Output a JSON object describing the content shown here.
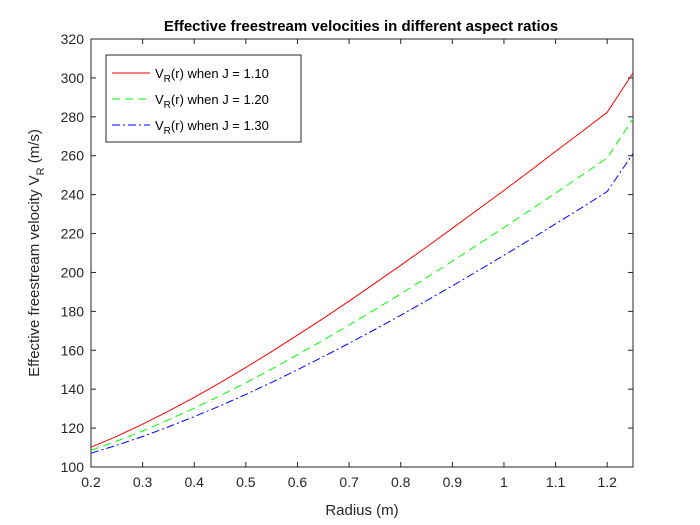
{
  "chart_data": {
    "type": "line",
    "title": "Effective freestream velocities in different aspect ratios",
    "xlabel": "Radius (m)",
    "ylabel_main": "Effective freestream velocity V",
    "ylabel_sub": "R",
    "ylabel_unit": " (m/s)",
    "xlim": [
      0.2,
      1.25
    ],
    "ylim": [
      100,
      320
    ],
    "xticks": [
      0.2,
      0.3,
      0.4,
      0.5,
      0.6,
      0.7,
      0.8,
      0.9,
      1,
      1.1,
      1.2
    ],
    "xtick_labels": [
      "0.2",
      "0.3",
      "0.4",
      "0.5",
      "0.6",
      "0.7",
      "0.8",
      "0.9",
      "1",
      "1.1",
      "1.2"
    ],
    "yticks": [
      100,
      120,
      140,
      160,
      180,
      200,
      220,
      240,
      260,
      280,
      300,
      320
    ],
    "ytick_labels": [
      "100",
      "120",
      "140",
      "160",
      "180",
      "200",
      "220",
      "240",
      "260",
      "280",
      "300",
      "320"
    ],
    "grid": false,
    "legend_position": "top-left",
    "x": [
      0.2,
      0.25,
      0.3,
      0.35,
      0.4,
      0.45,
      0.5,
      0.55,
      0.6,
      0.65,
      0.7,
      0.75,
      0.8,
      0.85,
      0.9,
      0.95,
      1.0,
      1.05,
      1.1,
      1.15,
      1.2,
      1.25
    ],
    "series": [
      {
        "name": "V_R(r) when J = 1.10",
        "legend_pre": "V",
        "legend_sub": "R",
        "legend_post": "(r) when J = 1.10",
        "color": "#ff0000",
        "dash": "",
        "values": [
          110.2,
          115.8,
          122.0,
          128.7,
          135.8,
          143.3,
          151.2,
          159.3,
          167.8,
          176.4,
          185.3,
          194.4,
          203.7,
          213.1,
          222.7,
          232.4,
          242.2,
          252.1,
          262.2,
          272.2,
          282.3,
          302.5
        ]
      },
      {
        "name": "V_R(r) when J = 1.20",
        "legend_pre": "V",
        "legend_sub": "R",
        "legend_post": "(r) when J = 1.20",
        "color": "#00ff00",
        "dash": "8,5",
        "values": [
          108.6,
          113.3,
          118.5,
          124.2,
          130.2,
          136.6,
          143.3,
          150.4,
          157.7,
          165.2,
          173.0,
          180.9,
          189.0,
          197.3,
          205.8,
          214.4,
          223.1,
          231.9,
          240.8,
          249.8,
          258.9,
          279.0
        ]
      },
      {
        "name": "V_R(r) when J = 1.30",
        "legend_pre": "V",
        "legend_sub": "R",
        "legend_post": "(r) when J = 1.30",
        "color": "#0000ff",
        "dash": "8,3,2,3",
        "values": [
          107.1,
          111.2,
          115.7,
          120.6,
          125.9,
          131.4,
          137.3,
          143.5,
          150.0,
          156.7,
          163.6,
          170.7,
          178.0,
          185.5,
          193.1,
          200.9,
          208.8,
          216.8,
          225.0,
          233.2,
          241.6,
          261.1
        ]
      }
    ]
  }
}
